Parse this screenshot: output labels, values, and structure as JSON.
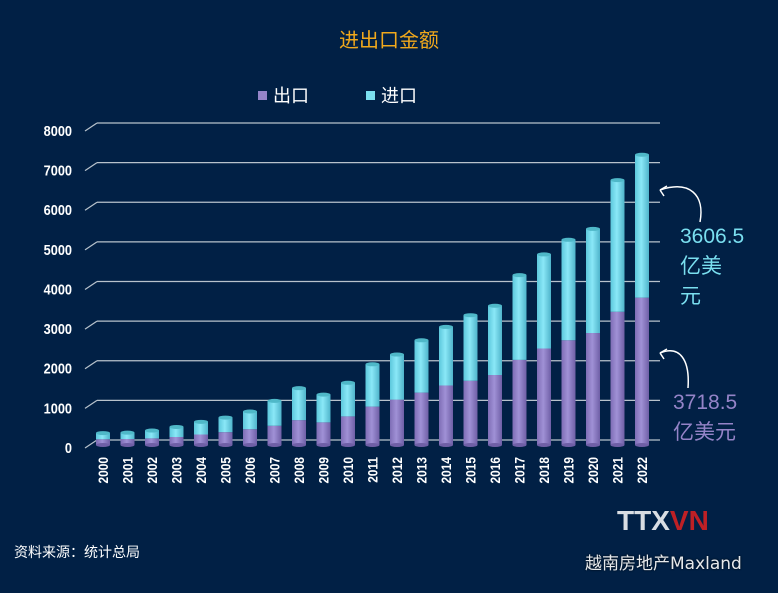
{
  "chart_data": {
    "type": "bar",
    "stacked": true,
    "title": "进出口金额",
    "categories": [
      "2000",
      "2001",
      "2002",
      "2003",
      "2004",
      "2005",
      "2006",
      "2007",
      "2008",
      "2009",
      "2010",
      "2011",
      "2012",
      "2013",
      "2014",
      "2015",
      "2016",
      "2017",
      "2018",
      "2019",
      "2020",
      "2021",
      "2022"
    ],
    "series": [
      {
        "name": "出口",
        "color": "#9584c8",
        "values": [
          145,
          150,
          167,
          202,
          265,
          324,
          398,
          485,
          627,
          571,
          722,
          969,
          1145,
          1322,
          1502,
          1621,
          1766,
          2148,
          2435,
          2643,
          2826,
          3362,
          3718.5
        ]
      },
      {
        "name": "进口",
        "color": "#7adff0",
        "values": [
          156,
          161,
          198,
          253,
          320,
          368,
          448,
          628,
          807,
          700,
          848,
          1068,
          1138,
          1320,
          1478,
          1655,
          1748,
          2138,
          2375,
          2536,
          2627,
          3323,
          3606.5
        ]
      }
    ],
    "ylim": [
      0,
      8000
    ],
    "yticks": [
      "0",
      "1000",
      "2000",
      "3000",
      "4000",
      "5000",
      "6000",
      "7000",
      "8000"
    ],
    "grid": true,
    "legend": "top",
    "annotations": [
      {
        "value": "3606.5",
        "unit_line1": "亿美",
        "unit_line2": "元",
        "color": "#7adff0"
      },
      {
        "value": "3718.5",
        "unit": "亿美元",
        "color": "#9584c8"
      }
    ]
  },
  "source": "资料来源：统计总局",
  "watermark": "越南房地产Maxland",
  "logo": "TTXVN"
}
